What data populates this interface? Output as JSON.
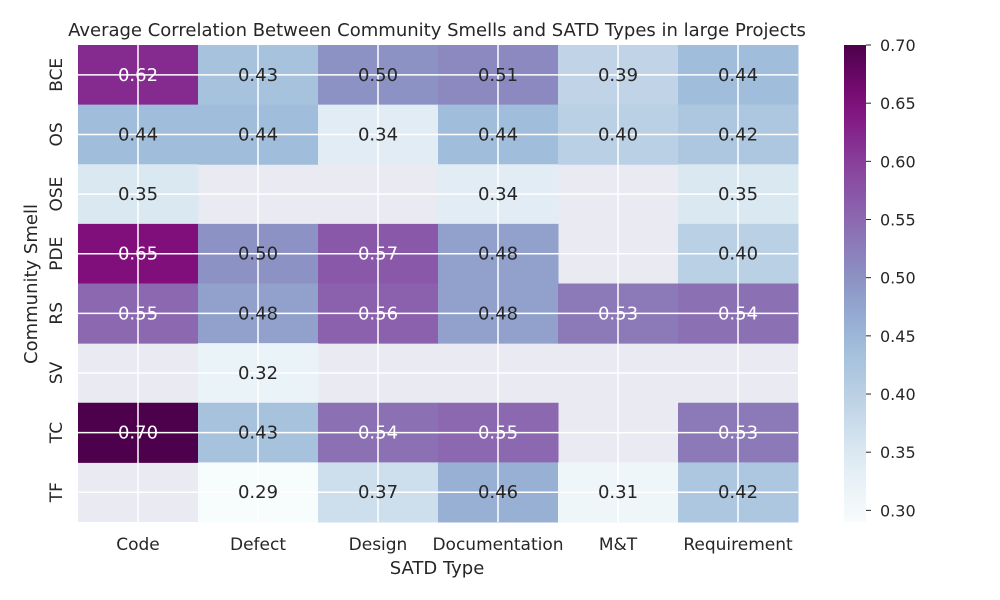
{
  "chart_data": {
    "type": "heatmap",
    "title": "Average Correlation Between Community Smells and SATD Types in large Projects",
    "xlabel": "SATD Type",
    "ylabel": "Community Smell",
    "x_categories": [
      "Code",
      "Defect",
      "Design",
      "Documentation",
      "M&T",
      "Requirement"
    ],
    "y_categories": [
      "BCE",
      "OS",
      "OSE",
      "PDE",
      "RS",
      "SV",
      "TC",
      "TF"
    ],
    "values": [
      [
        0.62,
        0.43,
        0.5,
        0.51,
        0.39,
        0.44
      ],
      [
        0.44,
        0.44,
        0.34,
        0.44,
        0.4,
        0.42
      ],
      [
        0.35,
        null,
        null,
        0.34,
        null,
        0.35
      ],
      [
        0.65,
        0.5,
        0.57,
        0.48,
        null,
        0.4
      ],
      [
        0.55,
        0.48,
        0.56,
        0.48,
        0.53,
        0.54
      ],
      [
        null,
        0.32,
        null,
        null,
        null,
        null
      ],
      [
        0.7,
        0.43,
        0.54,
        0.55,
        null,
        0.53
      ],
      [
        null,
        0.29,
        0.37,
        0.46,
        0.31,
        0.42
      ]
    ],
    "vmin": 0.29,
    "vmax": 0.7,
    "colorbar_ticks": [
      "0.30",
      "0.35",
      "0.40",
      "0.45",
      "0.50",
      "0.55",
      "0.60",
      "0.65",
      "0.70"
    ],
    "colormap": "BuPu",
    "missing_color": "#eaeaf2",
    "grid_color": "#ffffff"
  }
}
